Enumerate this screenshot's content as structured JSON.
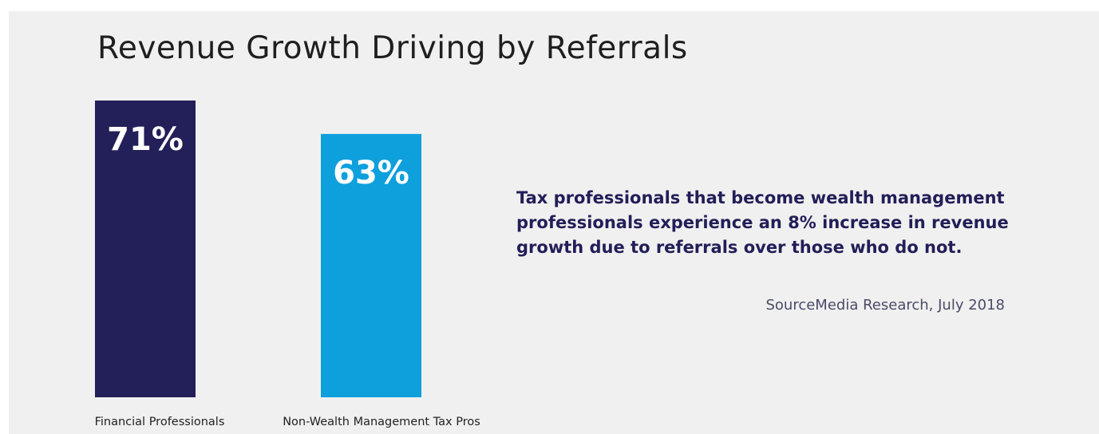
{
  "chart_data": {
    "type": "bar",
    "title": "Revenue Growth Driving by Referrals",
    "categories": [
      "Financial Professionals",
      "Non-Wealth Management Tax Pros"
    ],
    "values": [
      71,
      63
    ],
    "data_labels": [
      "71%",
      "63%"
    ],
    "colors": [
      "#231f58",
      "#0ea0dc"
    ],
    "ylim": [
      0,
      71
    ],
    "grid": false,
    "legend": "none"
  },
  "annotation": {
    "text": "Tax professionals that become wealth management professionals experience an 8% increase in revenue growth due to referrals over those who do not.",
    "source": "SourceMedia Research, July 2018"
  }
}
